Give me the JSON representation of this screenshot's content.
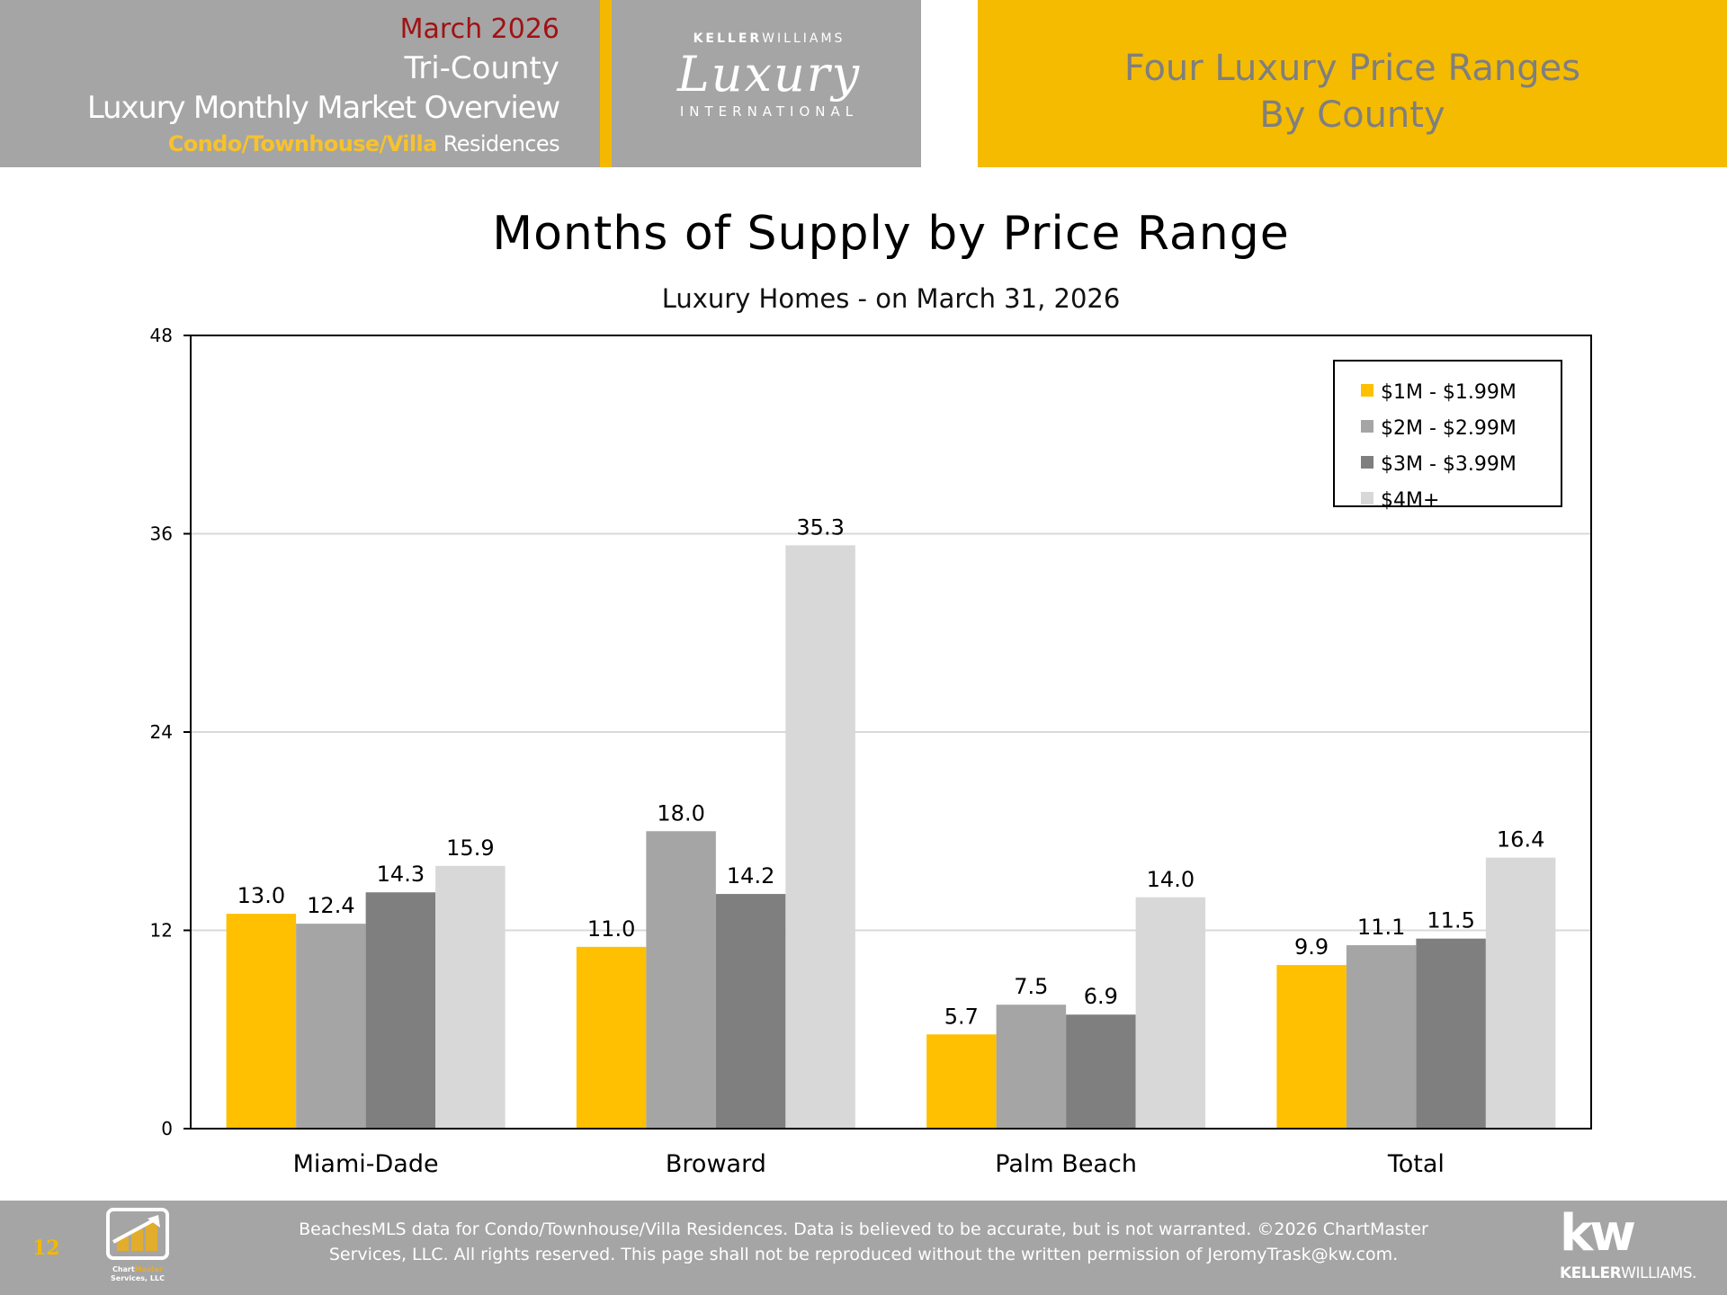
{
  "header": {
    "date": "March 2026",
    "region": "Tri-County",
    "report_title": "Luxury Monthly Market Overview",
    "property_type": "Condo/Townhouse/Villa",
    "property_suffix": "Residences",
    "logo_top_bold": "KELLER",
    "logo_top_light": "WILLIAMS",
    "logo_script": "Luxury",
    "logo_bottom": "INTERNATIONAL",
    "section_title_line1": "Four Luxury Price Ranges",
    "section_title_line2": "By County"
  },
  "colors": {
    "brand_yellow": "#f5bb00",
    "header_gray": "#a5a5a5",
    "accent_red": "#a01214",
    "series": [
      "#fec000",
      "#a5a5a5",
      "#7f7f7f",
      "#d8d8d8"
    ]
  },
  "chart_data": {
    "type": "bar",
    "title": "Months of Supply by Price Range",
    "subtitle": "Luxury Homes - on March 31, 2026",
    "xlabel": "",
    "ylabel": "",
    "ylim": [
      0,
      48
    ],
    "yticks": [
      0,
      12,
      24,
      36,
      48
    ],
    "grid": true,
    "legend_position": "top-right",
    "categories": [
      "Miami-Dade",
      "Broward",
      "Palm Beach",
      "Total"
    ],
    "series": [
      {
        "name": "$1M - $1.99M",
        "values": [
          13.0,
          11.0,
          5.7,
          9.9
        ]
      },
      {
        "name": "$2M - $2.99M",
        "values": [
          12.4,
          18.0,
          7.5,
          11.1
        ]
      },
      {
        "name": "$3M - $3.99M",
        "values": [
          14.3,
          14.2,
          6.9,
          11.5
        ]
      },
      {
        "name": "$4M+",
        "values": [
          15.9,
          35.3,
          14.0,
          16.4
        ]
      }
    ]
  },
  "footer": {
    "page_number": "12",
    "chartmaster_logo_line1a": "Chart",
    "chartmaster_logo_line1b": "Master",
    "chartmaster_logo_line2": "Services, LLC",
    "disclaimer_line1": "BeachesMLS data for Condo/Townhouse/Villa Residences.  Data is believed to be accurate, but is not warranted.   ©2026  ChartMaster",
    "disclaimer_line2": "Services, LLC.  All rights reserved. This page shall not be reproduced without the written permission of JeromyTrask@kw.com.",
    "kw_mark": "kw",
    "kw_name_bold": "KELLER",
    "kw_name_light": "WILLIAMS."
  }
}
